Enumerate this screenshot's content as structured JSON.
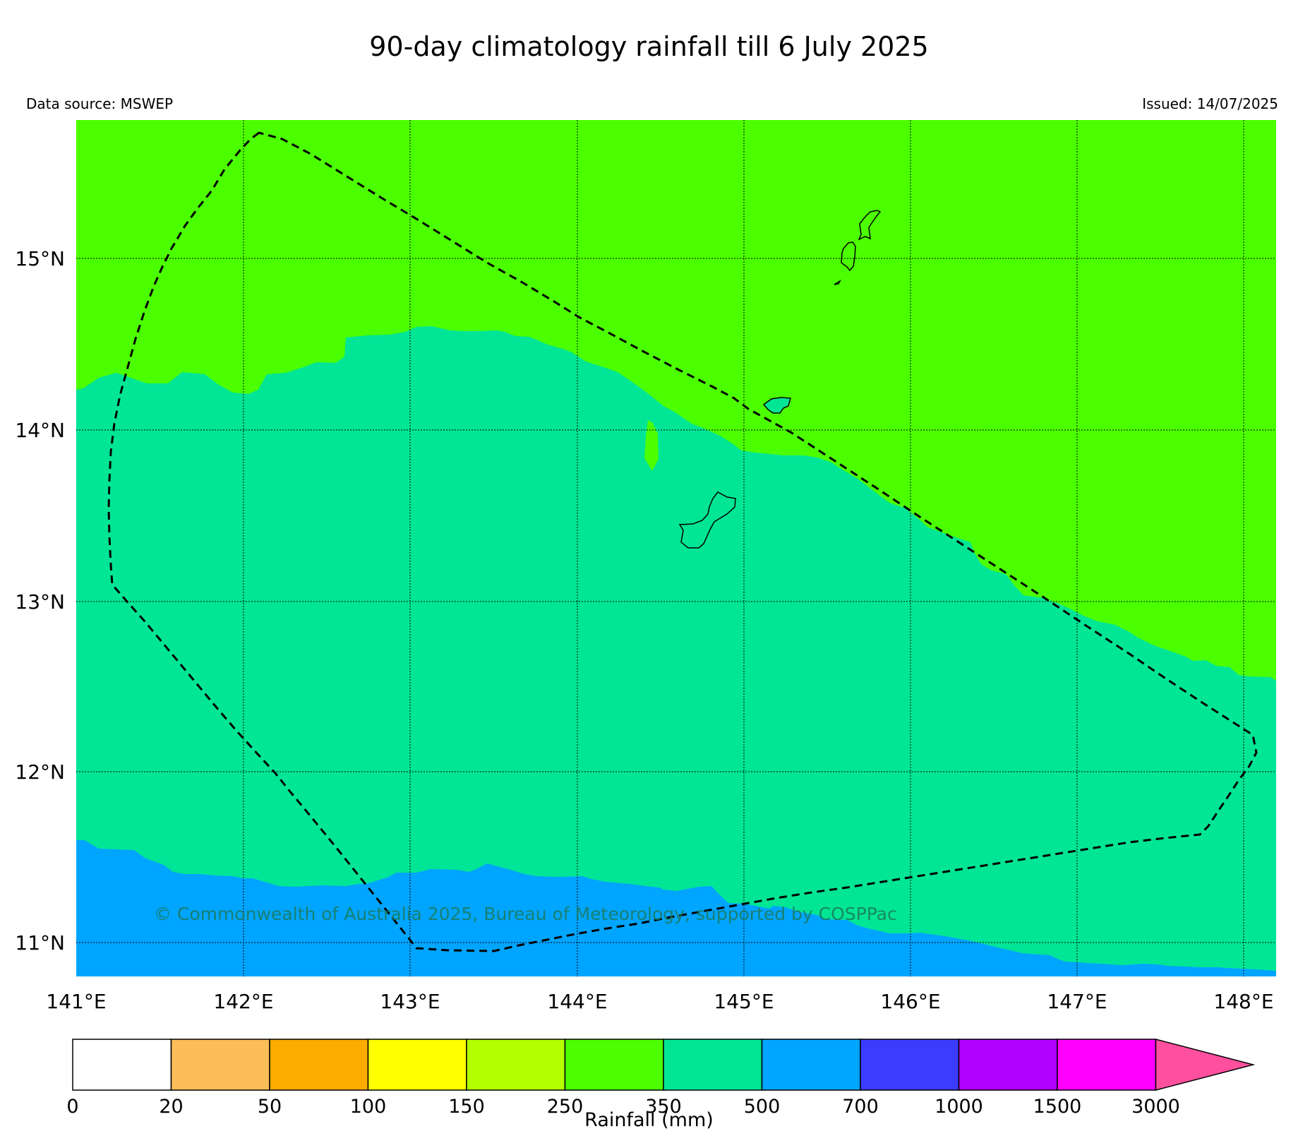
{
  "title": "90-day climatology rainfall till 6 July 2025",
  "data_source": "Data source: MSWEP",
  "issued": "Issued: 14/07/2025",
  "copyright": "© Commonwealth of Australia 2025, Bureau of Meteorology, supported by COSPPac",
  "map": {
    "lon_labels": [
      "141°E",
      "142°E",
      "143°E",
      "144°E",
      "145°E",
      "146°E",
      "147°E",
      "148°E"
    ],
    "lat_labels": [
      "11°N",
      "12°N",
      "13°N",
      "14°N",
      "15°N"
    ],
    "lon_range": [
      141,
      148.2
    ],
    "lat_range": [
      10.8,
      15.8
    ],
    "zones": [
      {
        "name": "250-350 mm",
        "color": "#4cff00"
      },
      {
        "name": "350-500 mm",
        "color": "#00e696"
      },
      {
        "name": "500-700 mm",
        "color": "#00a5ff"
      }
    ]
  },
  "colorbar": {
    "label": "Rainfall (mm)",
    "ticks": [
      "0",
      "20",
      "50",
      "100",
      "150",
      "250",
      "350",
      "500",
      "700",
      "1000",
      "1500",
      "3000"
    ],
    "colors": [
      "#ffffff",
      "#fdbe5a",
      "#fcab00",
      "#ffff00",
      "#b3ff00",
      "#4cff00",
      "#00e696",
      "#00a5ff",
      "#3c3cff",
      "#b000ff",
      "#ff00ff"
    ],
    "extend_color": "#ff50a0"
  }
}
